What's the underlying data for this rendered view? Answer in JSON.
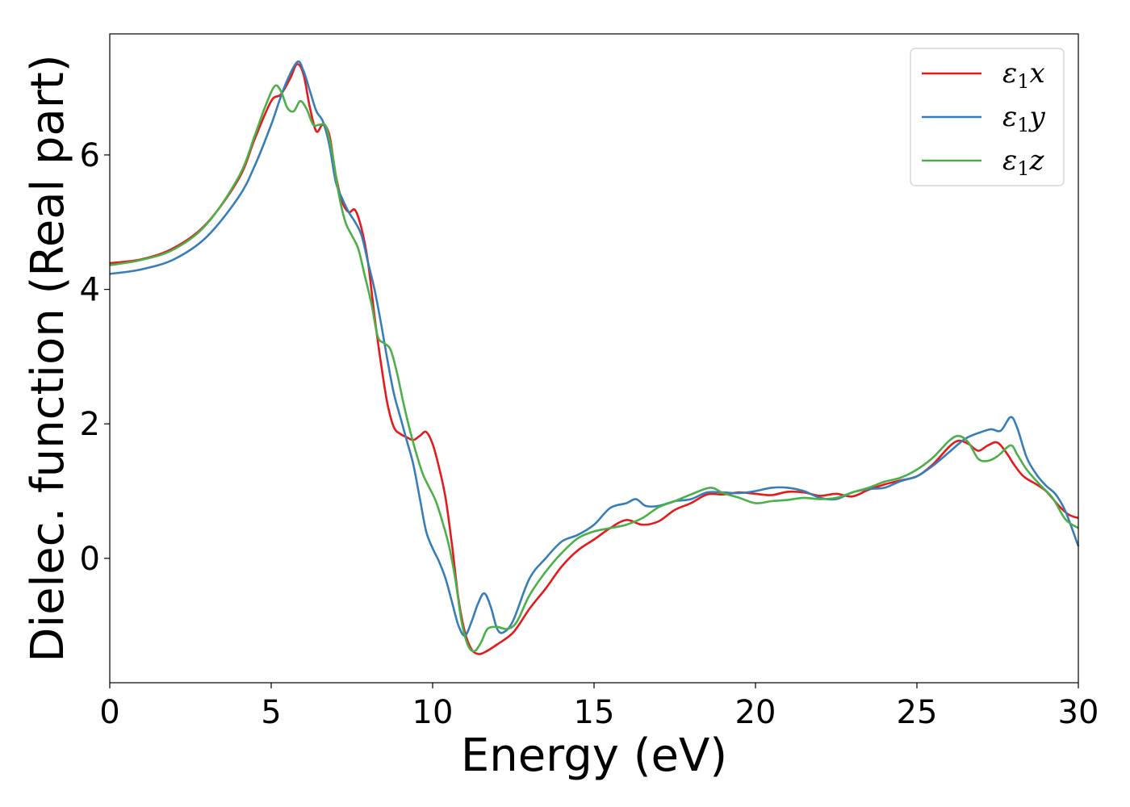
{
  "chart_data": {
    "type": "line",
    "xlabel": "Energy (eV)",
    "ylabel": "Dielec. function (Real part)",
    "xlim": [
      0,
      30
    ],
    "ylim": [
      -1.85,
      7.8
    ],
    "xticks": [
      0,
      5,
      10,
      15,
      20,
      25,
      30
    ],
    "yticks": [
      0,
      2,
      4,
      6
    ],
    "grid": false,
    "legend_position": "top-right",
    "series": [
      {
        "name": "ε1x",
        "legend_main": "ε",
        "legend_sub": "1",
        "legend_tail": "x",
        "color": "#e41a1c",
        "points": [
          [
            0,
            4.39
          ],
          [
            1,
            4.45
          ],
          [
            2,
            4.62
          ],
          [
            3,
            4.98
          ],
          [
            4,
            5.65
          ],
          [
            4.5,
            6.25
          ],
          [
            5,
            6.8
          ],
          [
            5.3,
            6.9
          ],
          [
            5.6,
            7.15
          ],
          [
            5.8,
            7.35
          ],
          [
            6.0,
            7.2
          ],
          [
            6.2,
            6.7
          ],
          [
            6.4,
            6.35
          ],
          [
            6.6,
            6.45
          ],
          [
            6.8,
            6.3
          ],
          [
            7.0,
            5.7
          ],
          [
            7.2,
            5.3
          ],
          [
            7.4,
            5.15
          ],
          [
            7.6,
            5.18
          ],
          [
            7.8,
            4.9
          ],
          [
            8.0,
            4.4
          ],
          [
            8.2,
            3.6
          ],
          [
            8.4,
            2.9
          ],
          [
            8.6,
            2.3
          ],
          [
            8.8,
            1.95
          ],
          [
            9.0,
            1.85
          ],
          [
            9.2,
            1.8
          ],
          [
            9.4,
            1.76
          ],
          [
            9.6,
            1.82
          ],
          [
            9.8,
            1.88
          ],
          [
            10.0,
            1.7
          ],
          [
            10.2,
            1.35
          ],
          [
            10.4,
            0.9
          ],
          [
            10.6,
            0.2
          ],
          [
            10.8,
            -0.6
          ],
          [
            11.0,
            -1.1
          ],
          [
            11.2,
            -1.35
          ],
          [
            11.4,
            -1.42
          ],
          [
            11.6,
            -1.4
          ],
          [
            12.0,
            -1.28
          ],
          [
            12.5,
            -1.1
          ],
          [
            13.0,
            -0.75
          ],
          [
            13.5,
            -0.45
          ],
          [
            14.0,
            -0.12
          ],
          [
            14.5,
            0.12
          ],
          [
            15.0,
            0.28
          ],
          [
            15.5,
            0.45
          ],
          [
            16.0,
            0.57
          ],
          [
            16.5,
            0.5
          ],
          [
            17.0,
            0.55
          ],
          [
            17.5,
            0.72
          ],
          [
            18.0,
            0.82
          ],
          [
            18.5,
            0.95
          ],
          [
            19.0,
            0.95
          ],
          [
            19.5,
            0.98
          ],
          [
            20.0,
            0.96
          ],
          [
            20.5,
            0.94
          ],
          [
            21.0,
            0.99
          ],
          [
            21.5,
            0.98
          ],
          [
            22.0,
            0.93
          ],
          [
            22.5,
            0.96
          ],
          [
            23.0,
            0.92
          ],
          [
            23.5,
            1.02
          ],
          [
            24.0,
            1.1
          ],
          [
            24.5,
            1.16
          ],
          [
            25.0,
            1.22
          ],
          [
            25.5,
            1.4
          ],
          [
            26.0,
            1.66
          ],
          [
            26.3,
            1.75
          ],
          [
            26.6,
            1.7
          ],
          [
            26.9,
            1.6
          ],
          [
            27.2,
            1.68
          ],
          [
            27.5,
            1.72
          ],
          [
            27.8,
            1.55
          ],
          [
            28.0,
            1.4
          ],
          [
            28.3,
            1.22
          ],
          [
            28.7,
            1.1
          ],
          [
            29.0,
            1.0
          ],
          [
            29.4,
            0.78
          ],
          [
            29.7,
            0.65
          ],
          [
            30.0,
            0.6
          ]
        ]
      },
      {
        "name": "ε1y",
        "legend_main": "ε",
        "legend_sub": "1",
        "legend_tail": "y",
        "color": "#377eb8",
        "points": [
          [
            0,
            4.23
          ],
          [
            1,
            4.3
          ],
          [
            2,
            4.45
          ],
          [
            3,
            4.78
          ],
          [
            4,
            5.38
          ],
          [
            4.5,
            5.85
          ],
          [
            5,
            6.45
          ],
          [
            5.4,
            7.0
          ],
          [
            5.8,
            7.38
          ],
          [
            6.0,
            7.25
          ],
          [
            6.2,
            6.95
          ],
          [
            6.4,
            6.65
          ],
          [
            6.6,
            6.5
          ],
          [
            6.8,
            6.15
          ],
          [
            7.0,
            5.6
          ],
          [
            7.2,
            5.35
          ],
          [
            7.4,
            5.15
          ],
          [
            7.6,
            5.0
          ],
          [
            7.8,
            4.8
          ],
          [
            8.0,
            4.4
          ],
          [
            8.2,
            4.0
          ],
          [
            8.4,
            3.5
          ],
          [
            8.6,
            2.95
          ],
          [
            8.8,
            2.45
          ],
          [
            9.0,
            2.1
          ],
          [
            9.2,
            1.75
          ],
          [
            9.4,
            1.4
          ],
          [
            9.6,
            0.9
          ],
          [
            9.8,
            0.4
          ],
          [
            10.0,
            0.15
          ],
          [
            10.2,
            -0.05
          ],
          [
            10.4,
            -0.3
          ],
          [
            10.6,
            -0.65
          ],
          [
            10.8,
            -1.0
          ],
          [
            11.0,
            -1.15
          ],
          [
            11.2,
            -0.95
          ],
          [
            11.4,
            -0.68
          ],
          [
            11.6,
            -0.52
          ],
          [
            11.8,
            -0.72
          ],
          [
            12.0,
            -1.05
          ],
          [
            12.2,
            -1.1
          ],
          [
            12.5,
            -0.92
          ],
          [
            13.0,
            -0.3
          ],
          [
            13.5,
            0.0
          ],
          [
            14.0,
            0.25
          ],
          [
            14.5,
            0.35
          ],
          [
            15.0,
            0.5
          ],
          [
            15.5,
            0.75
          ],
          [
            16.0,
            0.82
          ],
          [
            16.3,
            0.88
          ],
          [
            16.6,
            0.78
          ],
          [
            17.0,
            0.78
          ],
          [
            17.5,
            0.85
          ],
          [
            18.0,
            0.88
          ],
          [
            18.5,
            0.98
          ],
          [
            19.0,
            0.98
          ],
          [
            19.5,
            0.97
          ],
          [
            20.0,
            1.0
          ],
          [
            20.5,
            1.05
          ],
          [
            21.0,
            1.05
          ],
          [
            21.5,
            1.0
          ],
          [
            22.0,
            0.9
          ],
          [
            22.5,
            0.88
          ],
          [
            23.0,
            0.98
          ],
          [
            23.5,
            1.03
          ],
          [
            24.0,
            1.05
          ],
          [
            24.5,
            1.15
          ],
          [
            25.0,
            1.22
          ],
          [
            25.5,
            1.38
          ],
          [
            26.0,
            1.58
          ],
          [
            26.5,
            1.78
          ],
          [
            27.0,
            1.88
          ],
          [
            27.3,
            1.92
          ],
          [
            27.6,
            1.9
          ],
          [
            27.9,
            2.1
          ],
          [
            28.1,
            1.95
          ],
          [
            28.4,
            1.5
          ],
          [
            28.7,
            1.25
          ],
          [
            29.0,
            1.08
          ],
          [
            29.3,
            0.95
          ],
          [
            29.6,
            0.7
          ],
          [
            30.0,
            0.18
          ]
        ]
      },
      {
        "name": "ε1z",
        "legend_main": "ε",
        "legend_sub": "1",
        "legend_tail": "z",
        "color": "#4daf4a",
        "points": [
          [
            0,
            4.36
          ],
          [
            1,
            4.44
          ],
          [
            2,
            4.6
          ],
          [
            3,
            4.97
          ],
          [
            4,
            5.68
          ],
          [
            4.5,
            6.3
          ],
          [
            4.8,
            6.7
          ],
          [
            5.1,
            7.02
          ],
          [
            5.3,
            6.95
          ],
          [
            5.5,
            6.7
          ],
          [
            5.7,
            6.65
          ],
          [
            5.9,
            6.8
          ],
          [
            6.1,
            6.68
          ],
          [
            6.3,
            6.45
          ],
          [
            6.5,
            6.45
          ],
          [
            6.7,
            6.42
          ],
          [
            6.9,
            6.0
          ],
          [
            7.1,
            5.4
          ],
          [
            7.3,
            5.0
          ],
          [
            7.5,
            4.8
          ],
          [
            7.7,
            4.6
          ],
          [
            7.9,
            4.2
          ],
          [
            8.1,
            3.8
          ],
          [
            8.3,
            3.3
          ],
          [
            8.5,
            3.2
          ],
          [
            8.7,
            3.1
          ],
          [
            8.9,
            2.75
          ],
          [
            9.1,
            2.3
          ],
          [
            9.3,
            1.9
          ],
          [
            9.5,
            1.55
          ],
          [
            9.7,
            1.25
          ],
          [
            9.9,
            1.05
          ],
          [
            10.1,
            0.85
          ],
          [
            10.3,
            0.55
          ],
          [
            10.5,
            0.2
          ],
          [
            10.7,
            -0.3
          ],
          [
            10.9,
            -0.95
          ],
          [
            11.1,
            -1.3
          ],
          [
            11.3,
            -1.38
          ],
          [
            11.5,
            -1.25
          ],
          [
            11.7,
            -1.05
          ],
          [
            12.0,
            -1.02
          ],
          [
            12.3,
            -1.05
          ],
          [
            12.6,
            -0.95
          ],
          [
            13.0,
            -0.55
          ],
          [
            13.5,
            -0.2
          ],
          [
            14.0,
            0.08
          ],
          [
            14.5,
            0.3
          ],
          [
            15.0,
            0.4
          ],
          [
            15.5,
            0.45
          ],
          [
            16.0,
            0.5
          ],
          [
            16.5,
            0.6
          ],
          [
            17.0,
            0.76
          ],
          [
            17.5,
            0.85
          ],
          [
            18.0,
            0.95
          ],
          [
            18.6,
            1.05
          ],
          [
            19.0,
            0.97
          ],
          [
            19.5,
            0.9
          ],
          [
            20.0,
            0.82
          ],
          [
            20.5,
            0.85
          ],
          [
            21.0,
            0.87
          ],
          [
            21.5,
            0.9
          ],
          [
            22.0,
            0.88
          ],
          [
            22.5,
            0.9
          ],
          [
            23.0,
            0.98
          ],
          [
            23.5,
            1.05
          ],
          [
            24.0,
            1.14
          ],
          [
            24.5,
            1.2
          ],
          [
            25.0,
            1.32
          ],
          [
            25.5,
            1.5
          ],
          [
            26.0,
            1.75
          ],
          [
            26.3,
            1.82
          ],
          [
            26.6,
            1.72
          ],
          [
            26.9,
            1.48
          ],
          [
            27.2,
            1.45
          ],
          [
            27.5,
            1.52
          ],
          [
            27.9,
            1.68
          ],
          [
            28.1,
            1.55
          ],
          [
            28.4,
            1.32
          ],
          [
            28.8,
            1.1
          ],
          [
            29.2,
            0.9
          ],
          [
            29.6,
            0.58
          ],
          [
            30.0,
            0.45
          ]
        ]
      }
    ]
  }
}
